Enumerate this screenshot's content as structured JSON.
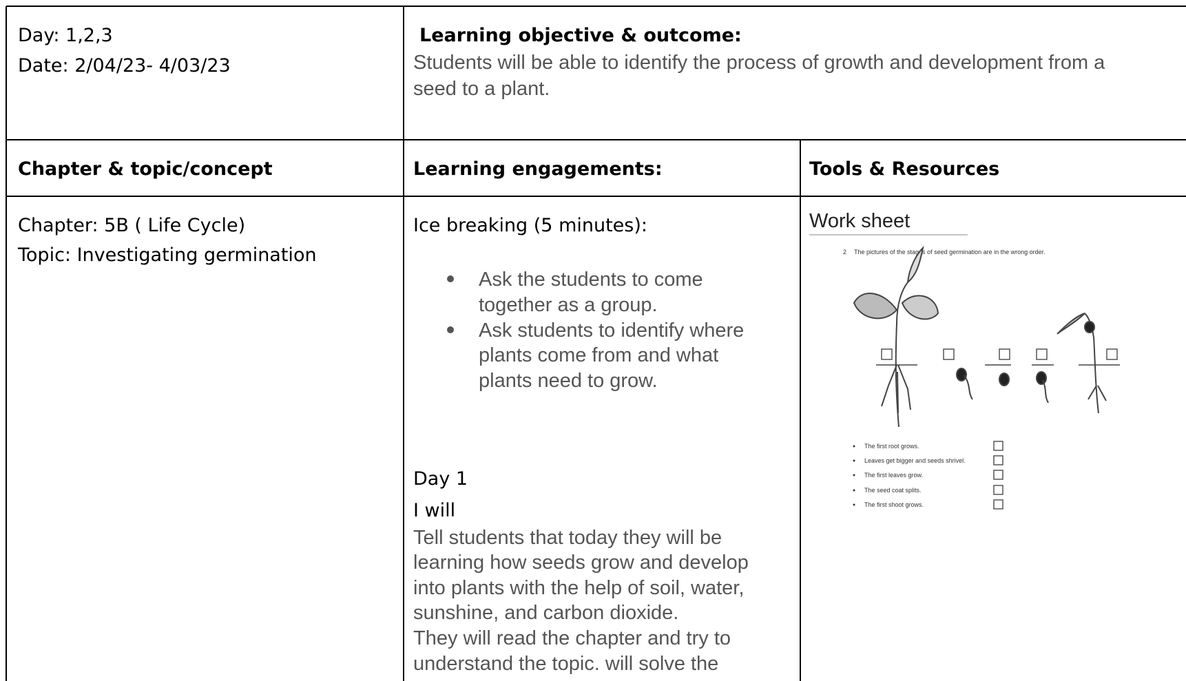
{
  "header": {
    "day": "Day: 1,2,3",
    "date": "Date: 2/04/23- 4/03/23",
    "objective_title": "Learning objective & outcome:",
    "objective_lines": [
      "Students will be able to identify the process of growth and development from a",
      "seed to a plant."
    ]
  },
  "columns": [
    "Chapter & topic/concept",
    "Learning engagements:",
    "Tools & Resources"
  ],
  "chapter": {
    "chapter": "Chapter: 5B ( Life Cycle)",
    "topic": "Topic: Investigating germination"
  },
  "engagements": {
    "ice_breaking": "Ice breaking (5 minutes):",
    "bullets": [
      [
        "Ask the students to come",
        "together as a group."
      ],
      [
        "Ask students to identify where",
        "plants come from and what",
        "plants need to grow."
      ]
    ],
    "day": "Day 1",
    "i_will": "I will",
    "lines": [
      "Tell students that today they will be",
      "learning how seeds grow and develop",
      "into plants with the help of soil, water,",
      "sunshine, and carbon dioxide.",
      "They will read the chapter and try to",
      "understand the topic. will solve the"
    ]
  },
  "resources": {
    "title": "Work sheet",
    "worksheet": {
      "number": "2",
      "question": "The pictures of the stages of seed germination are in the wrong order.",
      "statements": [
        "The first root grows.",
        "Leaves get bigger and seeds shrivel.",
        "The first leaves grow.",
        "The seed coat splits.",
        "The first shoot grows."
      ]
    }
  }
}
